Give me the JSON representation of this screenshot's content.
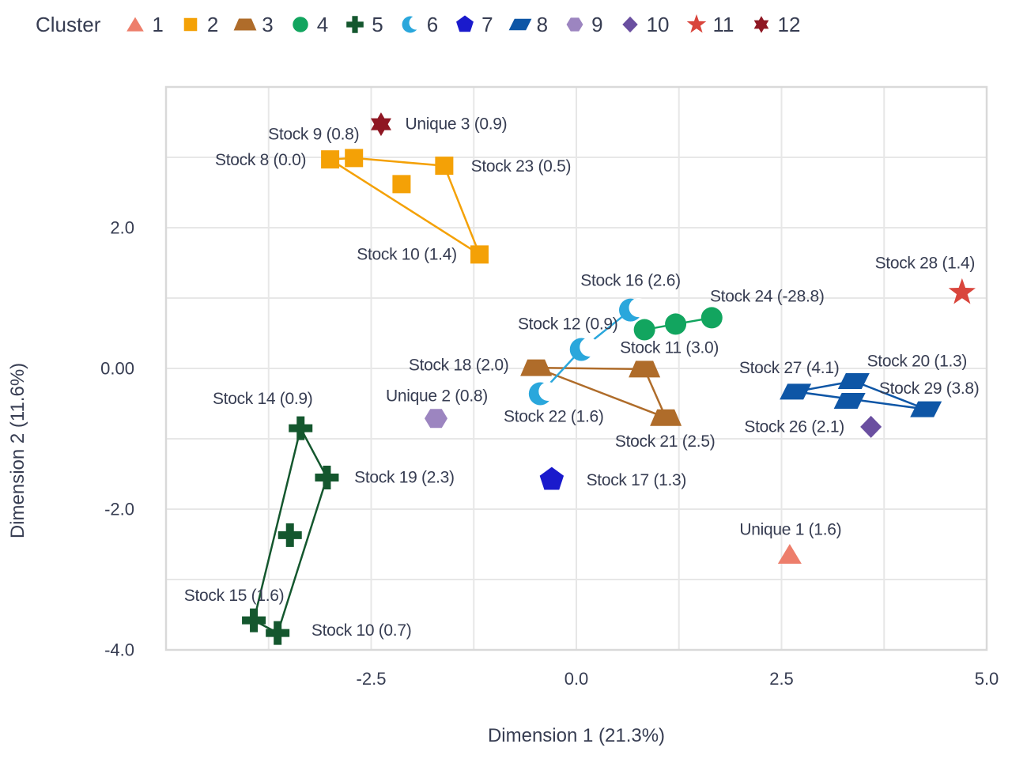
{
  "legend": {
    "title": "Cluster"
  },
  "colors": {
    "text": "#373D52",
    "grid": "#E7E7E7",
    "panel_border": "#D9D9D9",
    "background": "#FFFFFF"
  },
  "chart_data": {
    "type": "scatter",
    "title": "",
    "xlabel": "Dimension 1 (21.3%)",
    "ylabel": "Dimension 2 (11.6%)",
    "xlim": [
      -5,
      5
    ],
    "ylim": [
      -4,
      4
    ],
    "x_ticks": [
      {
        "value": -2.5,
        "label": "-2.5"
      },
      {
        "value": 0.0,
        "label": "0.0"
      },
      {
        "value": 2.5,
        "label": "2.5"
      },
      {
        "value": 5.0,
        "label": "5.0"
      }
    ],
    "y_ticks": [
      {
        "value": 2.0,
        "label": "2.0"
      },
      {
        "value": 0.0,
        "label": "0.00"
      },
      {
        "value": -2.0,
        "label": "-2.0"
      },
      {
        "value": -4.0,
        "label": "-4.0"
      }
    ],
    "x_grid_step": 1.25,
    "y_grid_step": 1.0,
    "grid": true,
    "legend_position": "top-left",
    "clusters": [
      {
        "id": 1,
        "legend_label": "1",
        "marker": "triangle",
        "color": "#ED7E6B",
        "points": [
          {
            "x": 2.6,
            "y": -2.64,
            "label": "Unique 1 (1.6)",
            "dx": 1,
            "dy": -31
          }
        ],
        "links": []
      },
      {
        "id": 2,
        "legend_label": "2",
        "marker": "square",
        "color": "#F4A106",
        "points": [
          {
            "x": -3.0,
            "y": 2.97,
            "label": "Stock 8 (0.0)",
            "dx": -88,
            "dy": 1
          },
          {
            "x": -2.71,
            "y": 2.99,
            "label": "Stock 9 (0.8)",
            "dx": -51,
            "dy": -30
          },
          {
            "x": -2.13,
            "y": 2.62,
            "label": null,
            "dx": 0,
            "dy": 0
          },
          {
            "x": -1.61,
            "y": 2.88,
            "label": "Stock 23 (0.5)",
            "dx": 97,
            "dy": 1
          },
          {
            "x": -1.18,
            "y": 1.62,
            "label": "Stock 10 (1.4)",
            "dx": -92,
            "dy": 0
          }
        ],
        "links": [
          [
            0,
            1
          ],
          [
            1,
            3
          ],
          [
            3,
            4
          ],
          [
            4,
            0
          ]
        ]
      },
      {
        "id": 3,
        "legend_label": "3",
        "marker": "trapezoid",
        "color": "#AF6C2A",
        "points": [
          {
            "x": -0.49,
            "y": 0.01,
            "label": "Stock 18 (2.0)",
            "dx": -98,
            "dy": -3
          },
          {
            "x": 0.83,
            "y": -0.01,
            "label": null,
            "dx": 0,
            "dy": 0
          },
          {
            "x": 1.09,
            "y": -0.7,
            "label": "Stock 21 (2.5)",
            "dx": -1,
            "dy": 30
          }
        ],
        "links": [
          [
            0,
            1
          ],
          [
            1,
            2
          ],
          [
            2,
            0
          ]
        ]
      },
      {
        "id": 4,
        "legend_label": "4",
        "marker": "circle",
        "color": "#12A55F",
        "points": [
          {
            "x": 0.83,
            "y": 0.55,
            "label": null,
            "dx": 0,
            "dy": 0
          },
          {
            "x": 1.21,
            "y": 0.63,
            "label": "Stock 11 (3.0)",
            "dx": -8,
            "dy": 30
          },
          {
            "x": 1.65,
            "y": 0.72,
            "label": "Stock 24 (-28.8)",
            "dx": 70,
            "dy": -27
          }
        ],
        "links": [
          [
            0,
            1
          ],
          [
            1,
            2
          ]
        ]
      },
      {
        "id": 5,
        "legend_label": "5",
        "marker": "plus",
        "color": "#14572E",
        "points": [
          {
            "x": -3.36,
            "y": -0.85,
            "label": "Stock 14 (0.9)",
            "dx": -48,
            "dy": -37
          },
          {
            "x": -3.04,
            "y": -1.55,
            "label": "Stock 19 (2.3)",
            "dx": 98,
            "dy": 0
          },
          {
            "x": -3.49,
            "y": -2.37,
            "label": null,
            "dx": 0,
            "dy": 0
          },
          {
            "x": -3.93,
            "y": -3.58,
            "label": "Stock 15 (1.6)",
            "dx": -25,
            "dy": -31
          },
          {
            "x": -3.64,
            "y": -3.76,
            "label": "Stock 10 (0.7)",
            "dx": 106,
            "dy": -3
          }
        ],
        "links": [
          [
            0,
            1
          ],
          [
            1,
            4
          ],
          [
            4,
            3
          ],
          [
            3,
            0
          ]
        ]
      },
      {
        "id": 6,
        "legend_label": "6",
        "marker": "crescent",
        "color": "#2AA7DC",
        "points": [
          {
            "x": 0.66,
            "y": 0.83,
            "label": "Stock 16 (2.6)",
            "dx": 0,
            "dy": -37
          },
          {
            "x": 0.06,
            "y": 0.27,
            "label": "Stock 12 (0.9)",
            "dx": -17,
            "dy": -32
          },
          {
            "x": -0.44,
            "y": -0.36,
            "label": "Stock 22 (1.6)",
            "dx": 17,
            "dy": 29
          }
        ],
        "links": [
          [
            0,
            1
          ],
          [
            1,
            2
          ]
        ]
      },
      {
        "id": 7,
        "legend_label": "7",
        "marker": "pentagon",
        "color": "#1A1ACC",
        "points": [
          {
            "x": -0.3,
            "y": -1.58,
            "label": "Stock 17 (1.3)",
            "dx": 107,
            "dy": 1
          }
        ],
        "links": []
      },
      {
        "id": 8,
        "legend_label": "8",
        "marker": "parallelogram",
        "color": "#0E56A6",
        "points": [
          {
            "x": 2.67,
            "y": -0.33,
            "label": "Stock 27 (4.1)",
            "dx": -8,
            "dy": -30
          },
          {
            "x": 3.38,
            "y": -0.18,
            "label": "Stock 20 (1.3)",
            "dx": 80,
            "dy": -25
          },
          {
            "x": 3.33,
            "y": -0.46,
            "label": null,
            "dx": 0,
            "dy": 0
          },
          {
            "x": 4.26,
            "y": -0.58,
            "label": "Stock 29 (3.8)",
            "dx": 4,
            "dy": -26
          }
        ],
        "links": [
          [
            0,
            1
          ],
          [
            1,
            3
          ],
          [
            3,
            0
          ]
        ]
      },
      {
        "id": 9,
        "legend_label": "9",
        "marker": "hexagon",
        "color": "#9C85C0",
        "points": [
          {
            "x": -1.71,
            "y": -0.71,
            "label": "Unique 2 (0.8)",
            "dx": 1,
            "dy": -28
          }
        ],
        "links": []
      },
      {
        "id": 10,
        "legend_label": "10",
        "marker": "diamond",
        "color": "#6A4FA0",
        "points": [
          {
            "x": 3.59,
            "y": -0.83,
            "label": "Stock 26 (2.1)",
            "dx": -97,
            "dy": 0
          }
        ],
        "links": []
      },
      {
        "id": 11,
        "legend_label": "11",
        "marker": "star5",
        "color": "#D9453C",
        "points": [
          {
            "x": 4.7,
            "y": 1.08,
            "label": "Stock 28 (1.4)",
            "dx": -47,
            "dy": -37
          }
        ],
        "links": []
      },
      {
        "id": 12,
        "legend_label": "12",
        "marker": "star6",
        "color": "#8F1723",
        "points": [
          {
            "x": -2.38,
            "y": 3.47,
            "label": "Unique 3 (0.9)",
            "dx": 95,
            "dy": 0
          }
        ],
        "links": []
      }
    ]
  }
}
